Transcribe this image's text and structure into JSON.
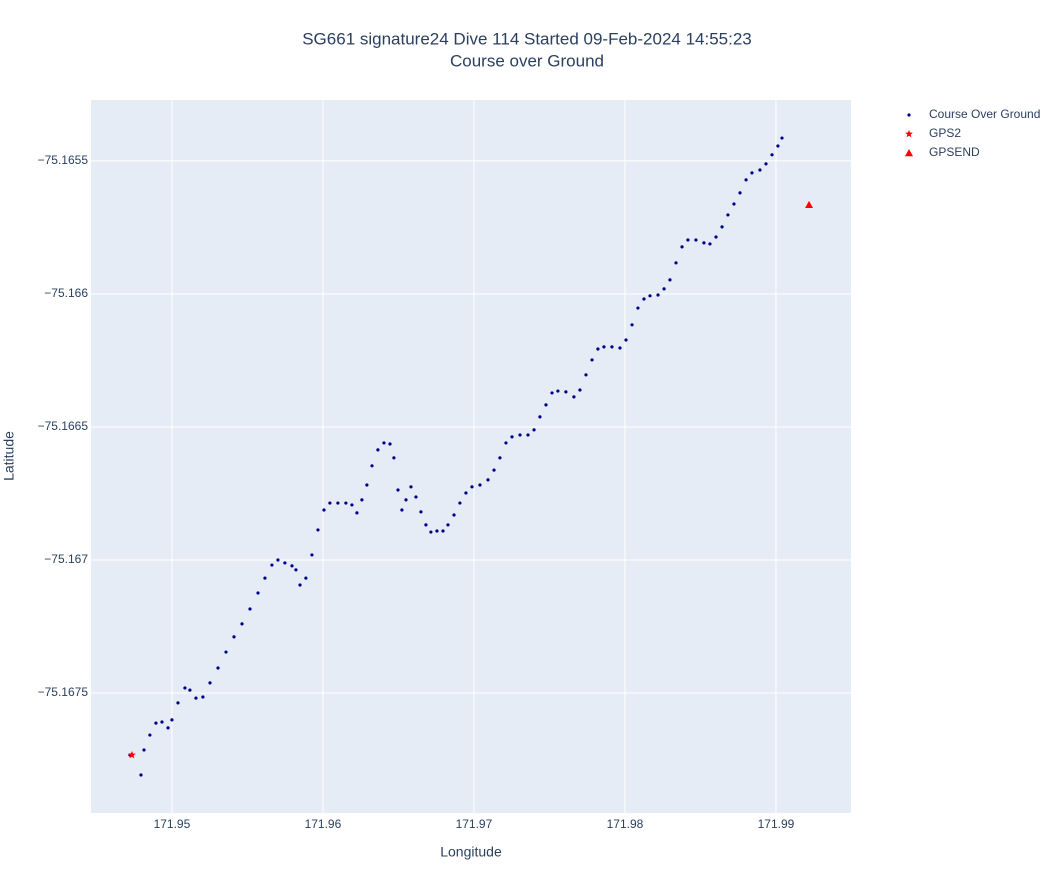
{
  "chart_data": {
    "type": "scatter",
    "title": "SG661 signature24 Dive 114 Started 09-Feb-2024 14:55:23",
    "subtitle": "Course over Ground",
    "x_label": "Longitude",
    "y_label": "Latitude",
    "xlim": [
      171.94464,
      171.99497
    ],
    "ylim": [
      -75.167951,
      -75.165271
    ],
    "xticks": [
      171.95,
      171.96,
      171.97,
      171.98,
      171.99
    ],
    "yticks": [
      {
        "value": -75.1655,
        "label": "−75.1655"
      },
      {
        "value": -75.166,
        "label": "−75.166"
      },
      {
        "value": -75.1665,
        "label": "−75.1665"
      },
      {
        "value": -75.167,
        "label": "−75.167"
      },
      {
        "value": -75.1675,
        "label": "−75.1675"
      }
    ],
    "grid": true,
    "legend": "outside-right",
    "series": [
      {
        "name": "Course Over Ground",
        "color": "#00008b",
        "marker": "circle",
        "x": [
          171.94722,
          171.94795,
          171.94815,
          171.94854,
          171.94894,
          171.94934,
          171.94974,
          171.95,
          171.9504,
          171.95086,
          171.95119,
          171.95159,
          171.95205,
          171.95252,
          171.95305,
          171.95358,
          171.95411,
          171.95464,
          171.95517,
          171.9557,
          171.95616,
          171.95662,
          171.95702,
          171.95748,
          171.95795,
          171.95821,
          171.95848,
          171.95887,
          171.95927,
          171.95967,
          171.96007,
          171.96046,
          171.96099,
          171.96152,
          171.96192,
          171.96225,
          171.96258,
          171.96291,
          171.96325,
          171.96364,
          171.96404,
          171.96444,
          171.9647,
          171.96497,
          171.96523,
          171.9655,
          171.96583,
          171.96616,
          171.96649,
          171.96682,
          171.96715,
          171.96755,
          171.96795,
          171.96828,
          171.96868,
          171.96907,
          171.96947,
          171.96987,
          171.9704,
          171.97093,
          171.97133,
          171.97172,
          171.97212,
          171.97252,
          171.97305,
          171.97358,
          171.97398,
          171.97437,
          171.97477,
          171.97517,
          171.97556,
          171.97609,
          171.97662,
          171.97702,
          171.97742,
          171.97782,
          171.97821,
          171.97861,
          171.97914,
          171.97967,
          171.98007,
          171.98047,
          171.98086,
          171.98126,
          171.98166,
          171.98219,
          171.98259,
          171.98298,
          171.98338,
          171.98378,
          171.98417,
          171.9847,
          171.98523,
          171.98563,
          171.98603,
          171.98643,
          171.98682,
          171.98722,
          171.98762,
          171.98802,
          171.98841,
          171.98894,
          171.98934,
          171.98974,
          171.99013,
          171.9904
        ],
        "y": [
          -75.167733,
          -75.167808,
          -75.167714,
          -75.167658,
          -75.167613,
          -75.167609,
          -75.167631,
          -75.167601,
          -75.167537,
          -75.167481,
          -75.167489,
          -75.167519,
          -75.167515,
          -75.167462,
          -75.167406,
          -75.167346,
          -75.167289,
          -75.16724,
          -75.167184,
          -75.167124,
          -75.167068,
          -75.167019,
          -75.167,
          -75.167011,
          -75.167022,
          -75.167037,
          -75.167094,
          -75.167068,
          -75.166981,
          -75.166887,
          -75.166812,
          -75.166786,
          -75.166786,
          -75.166786,
          -75.166793,
          -75.166823,
          -75.166774,
          -75.166718,
          -75.166646,
          -75.166586,
          -75.16656,
          -75.166564,
          -75.166616,
          -75.166737,
          -75.166812,
          -75.166774,
          -75.166725,
          -75.166763,
          -75.166819,
          -75.166868,
          -75.166895,
          -75.166891,
          -75.166891,
          -75.166868,
          -75.166831,
          -75.166786,
          -75.166748,
          -75.166725,
          -75.166718,
          -75.166699,
          -75.166662,
          -75.166616,
          -75.16656,
          -75.166537,
          -75.16653,
          -75.16653,
          -75.166511,
          -75.166462,
          -75.166417,
          -75.166372,
          -75.166365,
          -75.166368,
          -75.166387,
          -75.166361,
          -75.166304,
          -75.166248,
          -75.166207,
          -75.166199,
          -75.166199,
          -75.166203,
          -75.166173,
          -75.166116,
          -75.166053,
          -75.166019,
          -75.166007,
          -75.166004,
          -75.165981,
          -75.165947,
          -75.165883,
          -75.165823,
          -75.165797,
          -75.165797,
          -75.165808,
          -75.165812,
          -75.165786,
          -75.165748,
          -75.165703,
          -75.165662,
          -75.16562,
          -75.165571,
          -75.165545,
          -75.165534,
          -75.165511,
          -75.165477,
          -75.165444,
          -75.165414
        ]
      },
      {
        "name": "GPS2",
        "color": "#ff0000",
        "marker": "star",
        "x": [
          171.94735
        ],
        "y": [
          -75.167733
        ]
      },
      {
        "name": "GPSEND",
        "color": "#ff0000",
        "marker": "triangle-up",
        "x": [
          171.99219
        ],
        "y": [
          -75.165665
        ]
      }
    ]
  }
}
